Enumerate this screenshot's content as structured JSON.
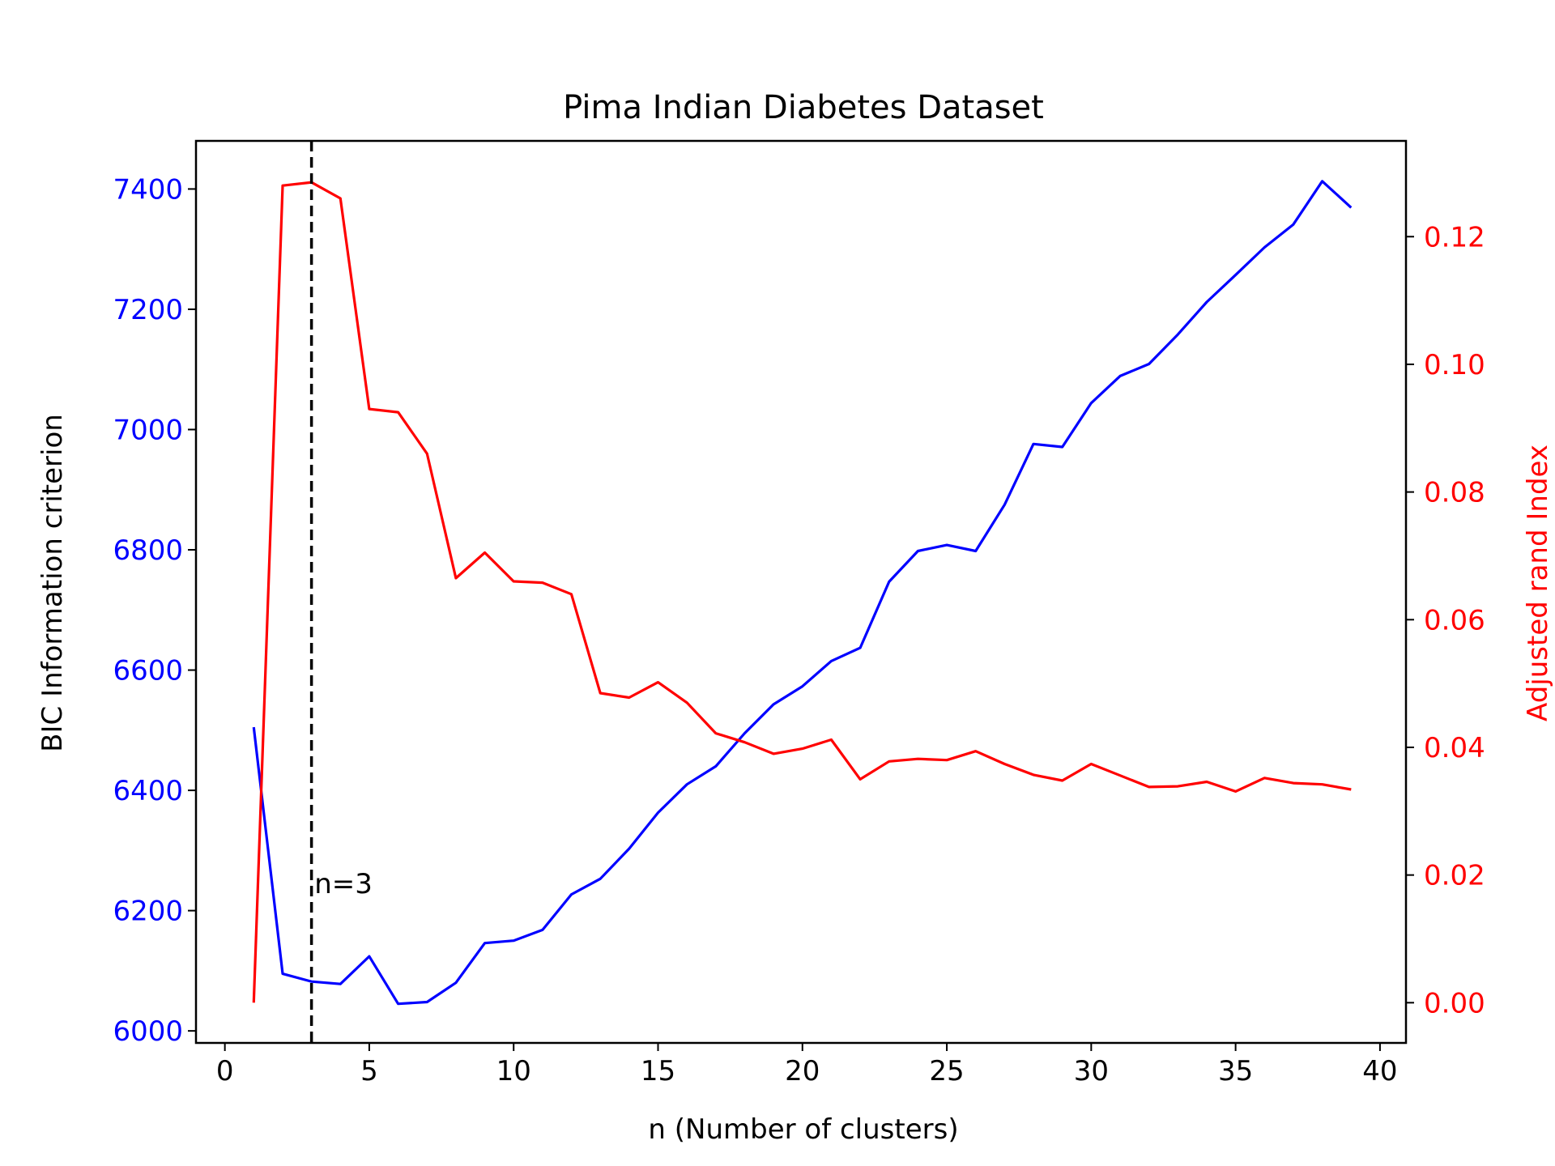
{
  "chart_data": {
    "type": "line",
    "title": "Pima Indian Diabetes Dataset",
    "xlabel": "n (Number of clusters)",
    "ylabel_left": "BIC Information criterion",
    "ylabel_right": "Adjusted rand Index",
    "xlim": [
      -1,
      40.9
    ],
    "ylim_left": [
      5980,
      7480
    ],
    "ylim_right": [
      -0.0063,
      0.135
    ],
    "x_ticks": [
      0,
      5,
      10,
      15,
      20,
      25,
      30,
      35,
      40
    ],
    "y_left_ticks": [
      6000,
      6200,
      6400,
      6600,
      6800,
      7000,
      7200,
      7400
    ],
    "y_right_ticks": [
      0.0,
      0.02,
      0.04,
      0.06,
      0.08,
      0.1,
      0.12
    ],
    "y_right_tick_labels": [
      "0.00",
      "0.02",
      "0.04",
      "0.06",
      "0.08",
      "0.10",
      "0.12"
    ],
    "grid": false,
    "series": [
      {
        "axis": "left",
        "color": "#0000ff",
        "x": [
          1,
          2,
          3,
          4,
          5,
          6,
          7,
          8,
          9,
          10,
          11,
          12,
          13,
          14,
          15,
          16,
          17,
          18,
          19,
          20,
          21,
          22,
          23,
          24,
          25,
          26,
          27,
          28,
          29,
          30,
          31,
          32,
          33,
          34,
          35,
          36,
          37,
          38,
          39
        ],
        "values": [
          6505,
          6095,
          6082,
          6078,
          6124,
          6045,
          6048,
          6080,
          6146,
          6150,
          6168,
          6227,
          6253,
          6303,
          6363,
          6410,
          6440,
          6495,
          6543,
          6573,
          6615,
          6637,
          6747,
          6798,
          6808,
          6798,
          6875,
          6976,
          6971,
          7044,
          7089,
          7109,
          7158,
          7212,
          7257,
          7303,
          7341,
          7413,
          7369
        ]
      },
      {
        "axis": "right",
        "color": "#ff0000",
        "x": [
          1,
          2,
          3,
          4,
          5,
          6,
          7,
          8,
          9,
          10,
          11,
          12,
          13,
          14,
          15,
          16,
          17,
          18,
          19,
          20,
          21,
          22,
          23,
          24,
          25,
          26,
          27,
          28,
          29,
          30,
          31,
          32,
          33,
          34,
          35,
          36,
          37,
          38,
          39
        ],
        "values": [
          0.0,
          0.128,
          0.1285,
          0.126,
          0.093,
          0.0925,
          0.086,
          0.0665,
          0.0705,
          0.066,
          0.0658,
          0.064,
          0.0485,
          0.0478,
          0.0502,
          0.047,
          0.0422,
          0.0408,
          0.039,
          0.0398,
          0.0412,
          0.035,
          0.0378,
          0.0382,
          0.038,
          0.0394,
          0.0374,
          0.0357,
          0.0348,
          0.0374,
          0.0356,
          0.0338,
          0.0339,
          0.0346,
          0.0331,
          0.0352,
          0.0344,
          0.0342,
          0.0334
        ]
      }
    ],
    "vline": {
      "x": 3,
      "color": "#000000",
      "style": "dashed"
    },
    "annotation": {
      "text": "n=3",
      "x": 3.1,
      "y_left": 6245
    }
  }
}
